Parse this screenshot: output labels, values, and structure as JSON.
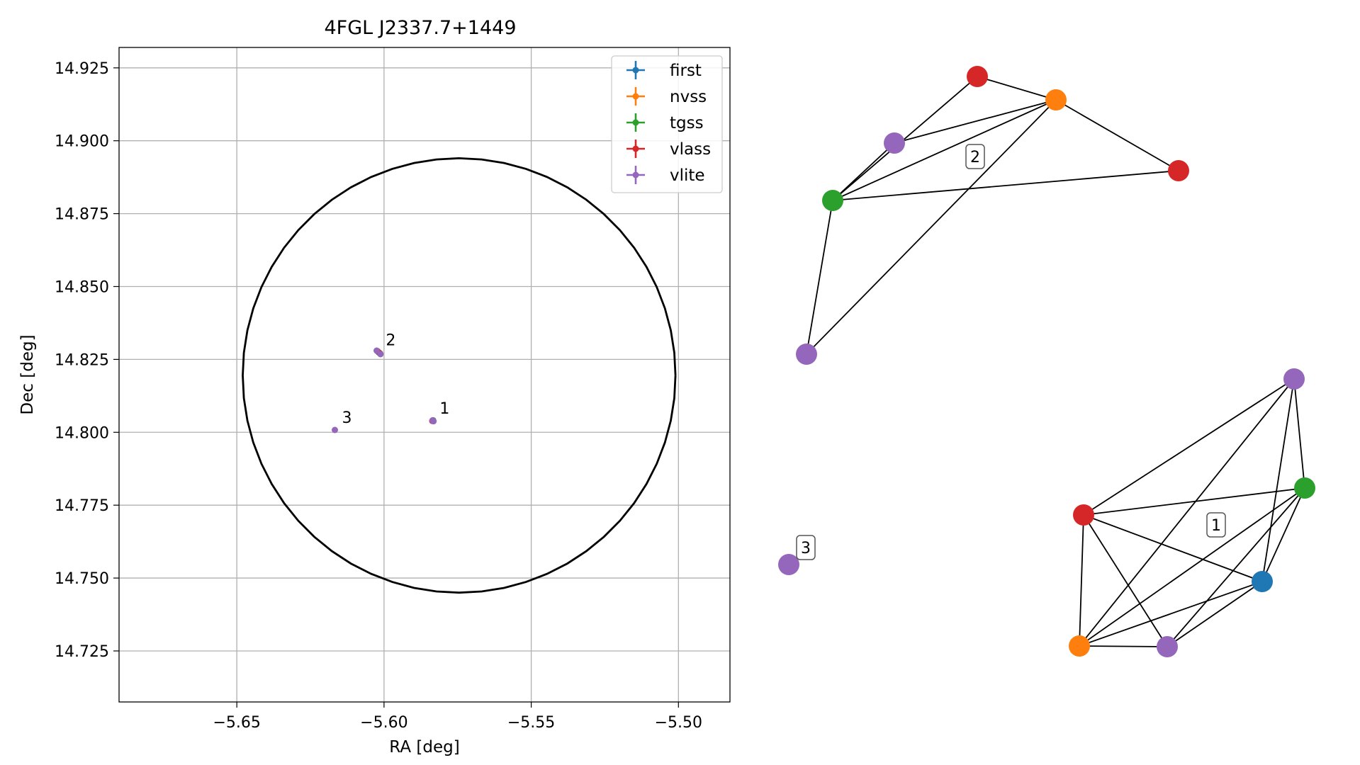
{
  "chart_data": [
    {
      "type": "scatter",
      "title": "4FGL J2337.7+1449",
      "xlabel": "RA [deg]",
      "ylabel": "Dec [deg]",
      "xlim": [
        -5.69,
        -5.4825
      ],
      "ylim": [
        14.7075,
        14.932
      ],
      "xticks": [
        -5.65,
        -5.6,
        -5.55,
        -5.5
      ],
      "xtick_labels": [
        "−5.65",
        "−5.60",
        "−5.55",
        "−5.50"
      ],
      "yticks": [
        14.725,
        14.75,
        14.775,
        14.8,
        14.825,
        14.85,
        14.875,
        14.9,
        14.925
      ],
      "ytick_labels": [
        "14.725",
        "14.750",
        "14.775",
        "14.800",
        "14.825",
        "14.850",
        "14.875",
        "14.900",
        "14.925"
      ],
      "grid": true,
      "legend_position": "top-right",
      "colors": {
        "first": "#1f77b4",
        "nvss": "#ff7f0e",
        "tgss": "#2ca02c",
        "vlass": "#d62728",
        "vlite": "#9467bd"
      },
      "series": [
        {
          "name": "first",
          "color": "#1f77b4",
          "points": [
            {
              "x": -5.5835,
              "y": 14.804
            }
          ]
        },
        {
          "name": "nvss",
          "color": "#ff7f0e",
          "points": [
            {
              "x": -5.6015,
              "y": 14.8272
            },
            {
              "x": -5.5835,
              "y": 14.804
            }
          ]
        },
        {
          "name": "tgss",
          "color": "#2ca02c",
          "points": [
            {
              "x": -5.6018,
              "y": 14.8274
            },
            {
              "x": -5.5833,
              "y": 14.8041
            }
          ]
        },
        {
          "name": "vlass",
          "color": "#d62728",
          "points": [
            {
              "x": -5.6013,
              "y": 14.827
            },
            {
              "x": -5.6022,
              "y": 14.8278
            },
            {
              "x": -5.5836,
              "y": 14.8039
            }
          ]
        },
        {
          "name": "vlite",
          "color": "#9467bd",
          "points": [
            {
              "x": -5.6025,
              "y": 14.828
            },
            {
              "x": -5.6012,
              "y": 14.8268
            },
            {
              "x": -5.5835,
              "y": 14.8041
            },
            {
              "x": -5.5832,
              "y": 14.8038
            },
            {
              "x": -5.6167,
              "y": 14.8008
            }
          ]
        }
      ],
      "ellipse": {
        "center": {
          "x": -5.5745,
          "y": 14.8195
        },
        "radius_x": 0.0735,
        "radius_y": 0.0745
      },
      "annotations": [
        {
          "text": "1",
          "x": -5.5835,
          "y": 14.804
        },
        {
          "text": "2",
          "x": -5.6018,
          "y": 14.8274
        },
        {
          "text": "3",
          "x": -5.6167,
          "y": 14.8008
        }
      ]
    },
    {
      "type": "network",
      "title": "",
      "node_colors": {
        "first": "#1f77b4",
        "nvss": "#ff7f0e",
        "tgss": "#2ca02c",
        "vlass": "#d62728",
        "vlite": "#9467bd"
      },
      "clusters": [
        {
          "label": "1",
          "nodes": [
            "vlite",
            "tgss",
            "vlass",
            "first",
            "nvss",
            "vlite"
          ]
        },
        {
          "label": "2",
          "nodes": [
            "vlass",
            "nvss",
            "vlite",
            "tgss",
            "vlass",
            "vlite"
          ]
        },
        {
          "label": "3",
          "nodes": [
            "vlite"
          ]
        }
      ]
    }
  ]
}
